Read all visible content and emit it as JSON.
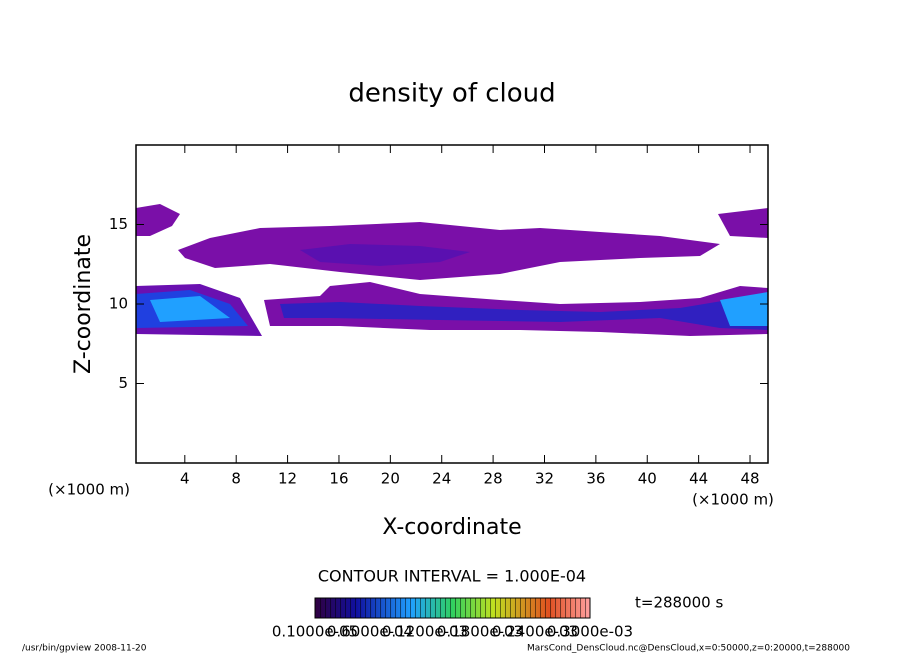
{
  "chart_data": {
    "type": "contour",
    "title": "density of cloud",
    "x_label": "X-coordinate",
    "y_label": "Z-coordinate",
    "x_unit": "(×1000 m)",
    "y_unit": "(×1000 m)",
    "xlim": [
      0.2,
      49.4
    ],
    "ylim": [
      0,
      20
    ],
    "xticks": [
      4,
      8,
      12,
      16,
      20,
      24,
      28,
      32,
      36,
      40,
      44,
      48
    ],
    "yticks": [
      5,
      10,
      15
    ],
    "contour_interval": "CONTOUR INTERVAL = 1.000E-04",
    "time_label": "t=288000 s",
    "colorbar_labels": [
      "0.1000e-05",
      "0.6000e-04",
      "0.1200e-03",
      "0.1800e-03",
      "0.2400e-03",
      "0.3000e-03"
    ],
    "footer_left": "/usr/bin/gpview  2008-11-20",
    "footer_right": "MarsCond_DensCloud.nc@DensCloud,x=0:50000,z=0:20000,t=288000"
  }
}
